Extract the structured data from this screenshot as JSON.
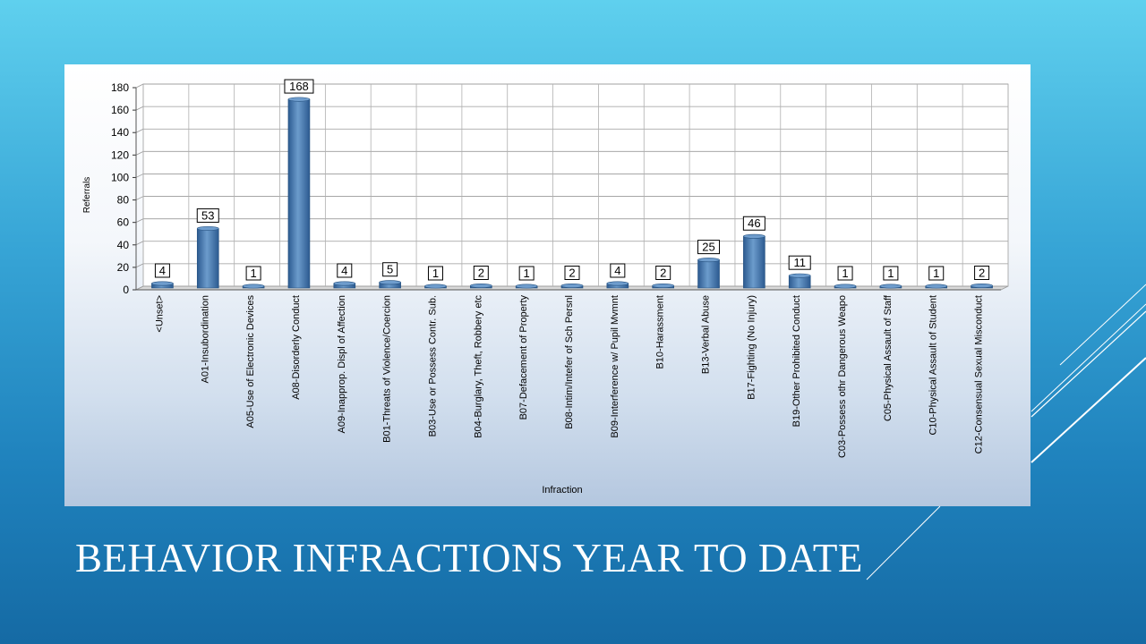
{
  "slide": {
    "title": "BEHAVIOR INFRACTIONS YEAR TO DATE"
  },
  "colors": {
    "bar": "#3d6fa8",
    "bar_highlight": "#6c9ccc",
    "title_text": "#ffffff"
  },
  "chart_data": {
    "type": "bar",
    "xlabel": "Infraction",
    "ylabel": "Referrals",
    "ylim": [
      0,
      180
    ],
    "yticks": [
      0,
      20,
      40,
      60,
      80,
      100,
      120,
      140,
      160,
      180
    ],
    "grid": true,
    "data_labels": true,
    "categories": [
      "<Unset>",
      "A01-Insubordination",
      "A05-Use of Electronic Devices",
      "A08-Disorderly Conduct",
      "A09-Inapprop. Displ of Affection",
      "B01-Threats of Violence/Coercion",
      "B03-Use or Possess Contr. Sub.",
      "B04-Burglary, Theft, Robbery etc",
      "B07-Defacement of Property",
      "B08-Intim/Intefer of Sch Persnl",
      "B09-Interference w/ Pupil Mvmnt",
      "B10-Harassment",
      "B13-Verbal Abuse",
      "B17-Fighting (No Injury)",
      "B19-Other Prohibited Conduct",
      "C03-Possess othr Dangerous Weapo",
      "C05-Physical Assault of Staff",
      "C10-Physical Assault of Student",
      "C12-Consensual Sexual Misconduct"
    ],
    "values": [
      4,
      53,
      1,
      168,
      4,
      5,
      1,
      2,
      1,
      2,
      4,
      2,
      25,
      46,
      11,
      1,
      1,
      1,
      2
    ]
  }
}
